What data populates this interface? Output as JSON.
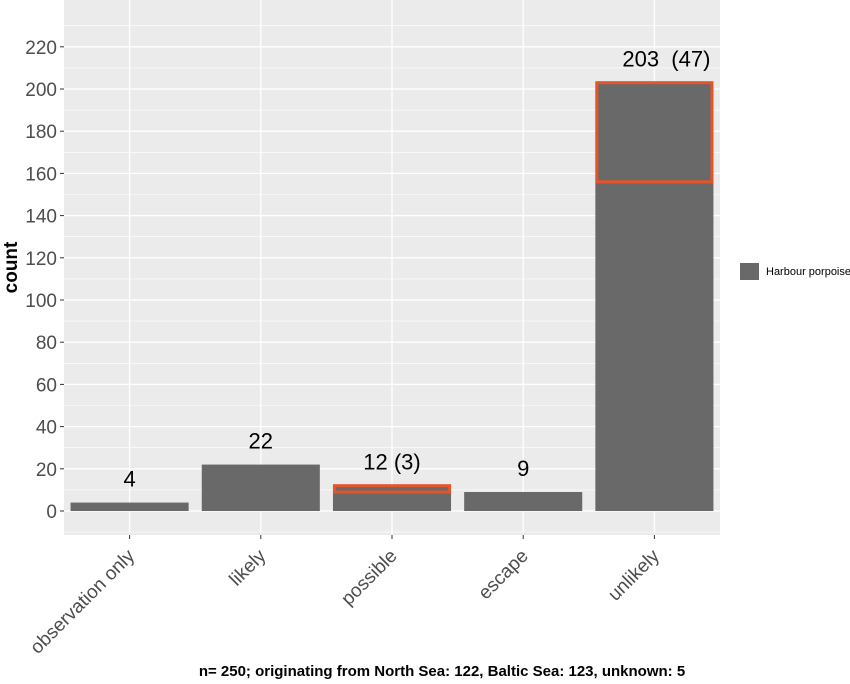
{
  "chart_data": {
    "type": "bar",
    "categories": [
      "observation only",
      "likely",
      "possible",
      "escape",
      "unlikely"
    ],
    "values": [
      4,
      22,
      12,
      9,
      203
    ],
    "highlight_values": [
      0,
      0,
      3,
      0,
      47
    ],
    "bar_labels": [
      "4",
      "22",
      "12 (3)",
      "9",
      "203  (47)"
    ],
    "series": [
      {
        "name": "Harbour porpoise",
        "values": [
          4,
          22,
          12,
          9,
          203
        ]
      }
    ],
    "xlabel": "",
    "ylabel": "count",
    "ylim": [
      -12,
      232
    ],
    "yticks": [
      0,
      20,
      40,
      60,
      80,
      100,
      120,
      140,
      160,
      180,
      200,
      220
    ],
    "grid": true,
    "legend": "right",
    "caption": "n= 250;  originating from North Sea: 122, Baltic Sea: 123, unknown: 5"
  },
  "colors": {
    "panel_bg": "#ebebeb",
    "grid": "#ffffff",
    "bar": "#696969",
    "highlight": "#e8542a"
  }
}
